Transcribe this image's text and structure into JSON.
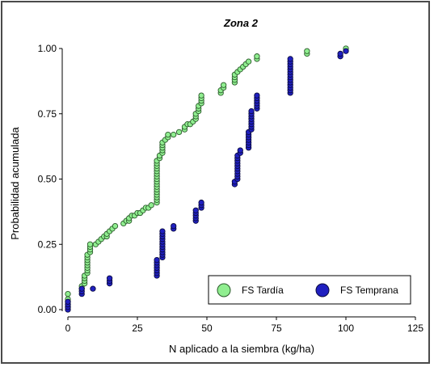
{
  "chart_data": {
    "type": "scatter",
    "title": "Zona 2",
    "xlabel": "N aplicado a la siembra (kg/ha)",
    "ylabel": "Probabilidad acumulada",
    "xlim": [
      0,
      125
    ],
    "ylim": [
      0,
      1.0
    ],
    "x_ticks": [
      "0",
      "25",
      "50",
      "75",
      "100",
      "125"
    ],
    "y_ticks": [
      "0.00",
      "0.25",
      "0.50",
      "0.75",
      "1.00"
    ],
    "grid": false,
    "legend_position": "bottom-right",
    "series": [
      {
        "name": "FS Tardía",
        "color": "#90ee90",
        "edge": "#2a5a2a",
        "points": [
          [
            0,
            0.01
          ],
          [
            0,
            0.02
          ],
          [
            0,
            0.03
          ],
          [
            0,
            0.04
          ],
          [
            0,
            0.06
          ],
          [
            5,
            0.08
          ],
          [
            5,
            0.09
          ],
          [
            6,
            0.1
          ],
          [
            6,
            0.11
          ],
          [
            6,
            0.12
          ],
          [
            6,
            0.13
          ],
          [
            7,
            0.14
          ],
          [
            7,
            0.15
          ],
          [
            7,
            0.16
          ],
          [
            7,
            0.17
          ],
          [
            7,
            0.18
          ],
          [
            7,
            0.19
          ],
          [
            7,
            0.2
          ],
          [
            7,
            0.21
          ],
          [
            8,
            0.22
          ],
          [
            8,
            0.23
          ],
          [
            8,
            0.24
          ],
          [
            8,
            0.25
          ],
          [
            10,
            0.25
          ],
          [
            11,
            0.26
          ],
          [
            12,
            0.27
          ],
          [
            13,
            0.28
          ],
          [
            14,
            0.28
          ],
          [
            14,
            0.29
          ],
          [
            15,
            0.3
          ],
          [
            16,
            0.31
          ],
          [
            17,
            0.32
          ],
          [
            20,
            0.33
          ],
          [
            21,
            0.34
          ],
          [
            22,
            0.34
          ],
          [
            22,
            0.35
          ],
          [
            23,
            0.36
          ],
          [
            24,
            0.36
          ],
          [
            25,
            0.37
          ],
          [
            26,
            0.37
          ],
          [
            27,
            0.38
          ],
          [
            28,
            0.39
          ],
          [
            29,
            0.39
          ],
          [
            30,
            0.4
          ],
          [
            32,
            0.41
          ],
          [
            32,
            0.42
          ],
          [
            32,
            0.43
          ],
          [
            32,
            0.44
          ],
          [
            32,
            0.45
          ],
          [
            32,
            0.46
          ],
          [
            32,
            0.47
          ],
          [
            32,
            0.48
          ],
          [
            32,
            0.49
          ],
          [
            32,
            0.5
          ],
          [
            32,
            0.51
          ],
          [
            32,
            0.52
          ],
          [
            32,
            0.53
          ],
          [
            32,
            0.54
          ],
          [
            32,
            0.55
          ],
          [
            32,
            0.56
          ],
          [
            32,
            0.57
          ],
          [
            33,
            0.58
          ],
          [
            33,
            0.59
          ],
          [
            34,
            0.6
          ],
          [
            34,
            0.61
          ],
          [
            34,
            0.62
          ],
          [
            34,
            0.63
          ],
          [
            34,
            0.64
          ],
          [
            35,
            0.65
          ],
          [
            36,
            0.66
          ],
          [
            36,
            0.67
          ],
          [
            38,
            0.67
          ],
          [
            40,
            0.68
          ],
          [
            42,
            0.69
          ],
          [
            42,
            0.7
          ],
          [
            43,
            0.71
          ],
          [
            44,
            0.71
          ],
          [
            45,
            0.72
          ],
          [
            46,
            0.73
          ],
          [
            46,
            0.74
          ],
          [
            46,
            0.75
          ],
          [
            47,
            0.76
          ],
          [
            47,
            0.77
          ],
          [
            47,
            0.78
          ],
          [
            48,
            0.79
          ],
          [
            48,
            0.8
          ],
          [
            48,
            0.81
          ],
          [
            48,
            0.82
          ],
          [
            55,
            0.83
          ],
          [
            55,
            0.84
          ],
          [
            56,
            0.85
          ],
          [
            56,
            0.86
          ],
          [
            60,
            0.87
          ],
          [
            60,
            0.88
          ],
          [
            60,
            0.89
          ],
          [
            60,
            0.9
          ],
          [
            61,
            0.91
          ],
          [
            62,
            0.92
          ],
          [
            63,
            0.93
          ],
          [
            64,
            0.94
          ],
          [
            65,
            0.95
          ],
          [
            68,
            0.96
          ],
          [
            68,
            0.97
          ],
          [
            86,
            0.98
          ],
          [
            86,
            0.99
          ],
          [
            100,
            1.0
          ]
        ]
      },
      {
        "name": "FS Temprana",
        "color": "#2020c0",
        "edge": "#0a0a40",
        "points": [
          [
            0,
            0.0
          ],
          [
            0,
            0.01
          ],
          [
            0,
            0.02
          ],
          [
            0,
            0.03
          ],
          [
            5,
            0.06
          ],
          [
            5,
            0.07
          ],
          [
            5,
            0.08
          ],
          [
            9,
            0.08
          ],
          [
            15,
            0.1
          ],
          [
            15,
            0.11
          ],
          [
            15,
            0.12
          ],
          [
            32,
            0.13
          ],
          [
            32,
            0.14
          ],
          [
            32,
            0.15
          ],
          [
            32,
            0.16
          ],
          [
            32,
            0.17
          ],
          [
            32,
            0.18
          ],
          [
            32,
            0.19
          ],
          [
            34,
            0.2
          ],
          [
            34,
            0.21
          ],
          [
            34,
            0.22
          ],
          [
            34,
            0.23
          ],
          [
            34,
            0.24
          ],
          [
            34,
            0.25
          ],
          [
            34,
            0.26
          ],
          [
            34,
            0.27
          ],
          [
            34,
            0.28
          ],
          [
            34,
            0.29
          ],
          [
            34,
            0.3
          ],
          [
            38,
            0.31
          ],
          [
            38,
            0.32
          ],
          [
            46,
            0.34
          ],
          [
            46,
            0.35
          ],
          [
            46,
            0.36
          ],
          [
            46,
            0.37
          ],
          [
            46,
            0.38
          ],
          [
            48,
            0.39
          ],
          [
            48,
            0.4
          ],
          [
            48,
            0.41
          ],
          [
            60,
            0.48
          ],
          [
            60,
            0.49
          ],
          [
            61,
            0.5
          ],
          [
            61,
            0.51
          ],
          [
            61,
            0.52
          ],
          [
            61,
            0.53
          ],
          [
            61,
            0.54
          ],
          [
            61,
            0.55
          ],
          [
            61,
            0.56
          ],
          [
            61,
            0.57
          ],
          [
            61,
            0.58
          ],
          [
            61,
            0.59
          ],
          [
            62,
            0.6
          ],
          [
            62,
            0.61
          ],
          [
            65,
            0.62
          ],
          [
            65,
            0.63
          ],
          [
            65,
            0.64
          ],
          [
            65,
            0.65
          ],
          [
            65,
            0.66
          ],
          [
            65,
            0.67
          ],
          [
            65,
            0.68
          ],
          [
            66,
            0.69
          ],
          [
            66,
            0.7
          ],
          [
            66,
            0.71
          ],
          [
            66,
            0.72
          ],
          [
            66,
            0.73
          ],
          [
            66,
            0.74
          ],
          [
            66,
            0.75
          ],
          [
            66,
            0.76
          ],
          [
            68,
            0.77
          ],
          [
            68,
            0.78
          ],
          [
            68,
            0.79
          ],
          [
            68,
            0.8
          ],
          [
            68,
            0.81
          ],
          [
            68,
            0.82
          ],
          [
            80,
            0.83
          ],
          [
            80,
            0.84
          ],
          [
            80,
            0.85
          ],
          [
            80,
            0.86
          ],
          [
            80,
            0.87
          ],
          [
            80,
            0.88
          ],
          [
            80,
            0.89
          ],
          [
            80,
            0.9
          ],
          [
            80,
            0.91
          ],
          [
            80,
            0.92
          ],
          [
            80,
            0.93
          ],
          [
            80,
            0.94
          ],
          [
            80,
            0.95
          ],
          [
            80,
            0.96
          ],
          [
            98,
            0.97
          ],
          [
            98,
            0.98
          ],
          [
            100,
            0.99
          ]
        ]
      }
    ]
  }
}
